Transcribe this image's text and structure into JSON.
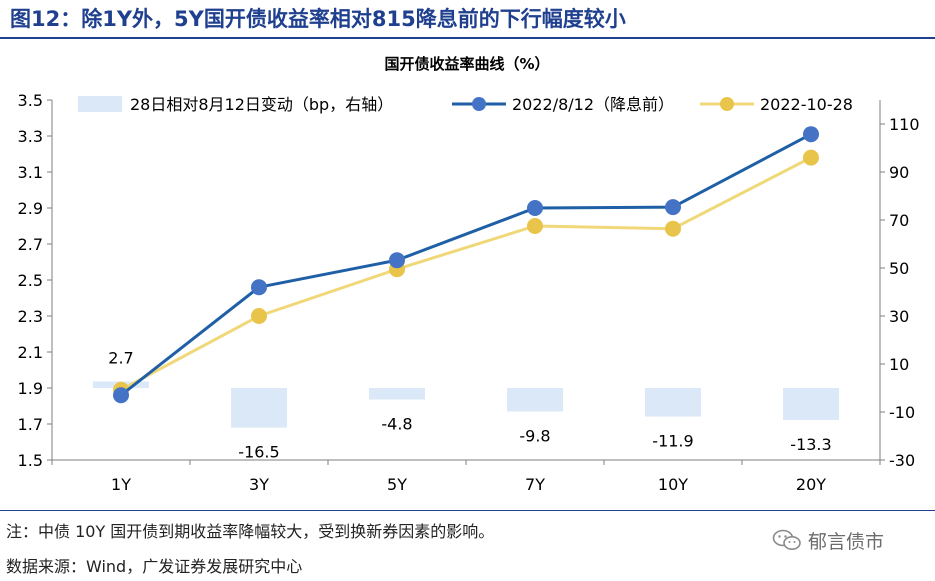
{
  "figure": {
    "title": "图12：除1Y外，5Y国开债收益率相对815降息前的下行幅度较小",
    "note": "注：中债 10Y 国开债到期收益率降幅较大，受到换新券因素的影响。",
    "source": "数据来源：Wind，广发证券发展研究中心",
    "watermark": "郁言债市",
    "watermark_icon": "wechat-icon"
  },
  "chart_data": {
    "type": "bar+line",
    "title": "国开债收益率曲线（%）",
    "categories": [
      "1Y",
      "3Y",
      "5Y",
      "7Y",
      "10Y",
      "20Y"
    ],
    "y_left": {
      "min": 1.5,
      "max": 3.5,
      "ticks": [
        "1.5",
        "1.7",
        "1.9",
        "2.1",
        "2.3",
        "2.5",
        "2.7",
        "2.9",
        "3.1",
        "3.3",
        "3.5"
      ]
    },
    "y_right": {
      "min": -30,
      "max": 120,
      "ticks": [
        "-30",
        "-10",
        "10",
        "30",
        "50",
        "70",
        "90",
        "110"
      ]
    },
    "grid": false,
    "legend_position": "top",
    "series": [
      {
        "name": "28日相对8月12日变动（bp，右轴）",
        "kind": "bar",
        "axis": "right",
        "color": "#dbe8f7",
        "values": [
          2.7,
          -16.5,
          -4.8,
          -9.8,
          -11.9,
          -13.3
        ],
        "labels": [
          "2.7",
          "-16.5",
          "-4.8",
          "-9.8",
          "-11.9",
          "-13.3"
        ]
      },
      {
        "name": "2022/8/12（降息前）",
        "kind": "line",
        "axis": "left",
        "color": "#1f5fa6",
        "marker_color": "#4472c4",
        "values": [
          1.86,
          2.46,
          2.61,
          2.9,
          2.905,
          3.31
        ]
      },
      {
        "name": "2022-10-28",
        "kind": "line",
        "axis": "left",
        "color": "#f0d878",
        "marker_color": "#e8c54a",
        "values": [
          1.89,
          2.3,
          2.56,
          2.8,
          2.785,
          3.18
        ]
      }
    ]
  }
}
